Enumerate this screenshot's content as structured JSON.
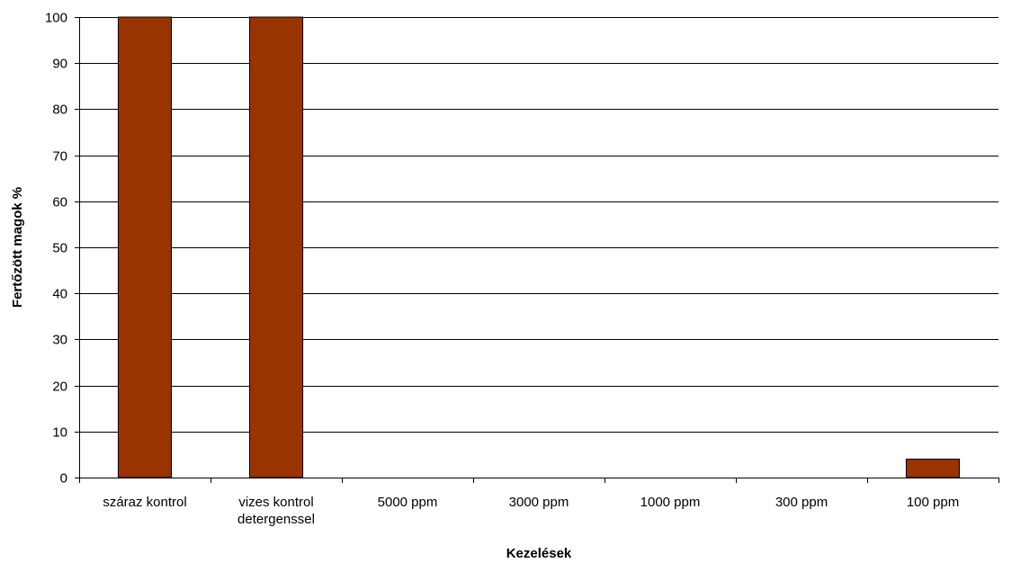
{
  "chart_data": {
    "type": "bar",
    "categories": [
      [
        "száraz kontrol"
      ],
      [
        "vizes kontrol",
        "detergenssel"
      ],
      [
        "5000 ppm"
      ],
      [
        "3000 ppm"
      ],
      [
        "1000 ppm"
      ],
      [
        "300 ppm"
      ],
      [
        "100 ppm"
      ]
    ],
    "values": [
      100,
      100,
      0,
      0,
      0,
      0,
      4
    ],
    "xlabel": "Kezelések",
    "ylabel": "Fertőzött magok %",
    "ylim": [
      0,
      100
    ],
    "yticks": [
      0,
      10,
      20,
      30,
      40,
      50,
      60,
      70,
      80,
      90,
      100
    ],
    "grid": true,
    "legend": false,
    "colors": {
      "bar_fill": "#993300",
      "bar_stroke": "#000000",
      "grid": "#000000"
    }
  }
}
